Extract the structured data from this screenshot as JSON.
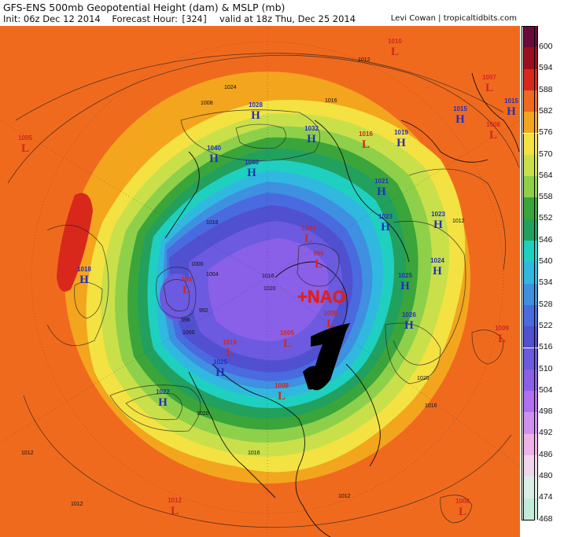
{
  "header": {
    "title": "GFS-ENS 500mb Geopotential Height (dam) & MSLP (mb)",
    "init": "Init: 06z Dec 12 2014",
    "forecast_hour_label": "Forecast Hour:",
    "forecast_hour": "[324]",
    "valid": "valid at 18z Thu, Dec 25 2014",
    "credit": "Levi Cowan | tropicaltidbits.com"
  },
  "scale": {
    "levels": [
      "600",
      "594",
      "588",
      "582",
      "576",
      "570",
      "564",
      "558",
      "552",
      "546",
      "540",
      "534",
      "528",
      "522",
      "516",
      "510",
      "504",
      "498",
      "492",
      "486",
      "480",
      "474",
      "468"
    ],
    "colors": [
      "#6a0a3a",
      "#9c0f20",
      "#d8281c",
      "#f06a1e",
      "#f3a51e",
      "#f3e242",
      "#c9e04a",
      "#8fd04a",
      "#3aa53a",
      "#22a05e",
      "#1fd0c0",
      "#30b8e0",
      "#3f90e0",
      "#4a6ae0",
      "#5050d0",
      "#6c5ae0",
      "#8a60e8",
      "#b070f0",
      "#d090f0",
      "#f0b0e8",
      "#f0d6ea",
      "#dcefe6",
      "#c2ecd8"
    ]
  },
  "annotation": {
    "text": "+NAO",
    "color": "#e02020"
  },
  "pressure_systems": [
    {
      "type": "L",
      "value": "1010"
    },
    {
      "type": "L",
      "value": "1007"
    },
    {
      "type": "H",
      "value": "1015"
    },
    {
      "type": "H",
      "value": "1015"
    },
    {
      "type": "L",
      "value": "1008"
    },
    {
      "type": "L",
      "value": "1005"
    },
    {
      "type": "H",
      "value": "1028"
    },
    {
      "type": "H",
      "value": "1032"
    },
    {
      "type": "L",
      "value": "1016"
    },
    {
      "type": "H",
      "value": "1019"
    },
    {
      "type": "H",
      "value": "1040"
    },
    {
      "type": "H",
      "value": "1040"
    },
    {
      "type": "H",
      "value": "1021"
    },
    {
      "type": "H",
      "value": "1023"
    },
    {
      "type": "H",
      "value": "1023"
    },
    {
      "type": "L",
      "value": "1004"
    },
    {
      "type": "L",
      "value": "996"
    },
    {
      "type": "H",
      "value": "1024"
    },
    {
      "type": "H",
      "value": "1018"
    },
    {
      "type": "L",
      "value": "984"
    },
    {
      "type": "H",
      "value": "1025"
    },
    {
      "type": "H",
      "value": "1026"
    },
    {
      "type": "L",
      "value": "1009"
    },
    {
      "type": "L",
      "value": "1006"
    },
    {
      "type": "L",
      "value": "1005"
    },
    {
      "type": "L",
      "value": "1019"
    },
    {
      "type": "H",
      "value": "1025"
    },
    {
      "type": "H",
      "value": "1022"
    },
    {
      "type": "L",
      "value": "1008"
    },
    {
      "type": "L",
      "value": "1012"
    },
    {
      "type": "L",
      "value": "1008"
    }
  ],
  "isobar_labels": [
    "1012",
    "1012",
    "1016",
    "1016",
    "1020",
    "1020",
    "1024",
    "1012",
    "1016",
    "1008",
    "1004",
    "1000",
    "992",
    "996",
    "1000",
    "1016",
    "1020",
    "1016",
    "1012",
    "1012"
  ]
}
